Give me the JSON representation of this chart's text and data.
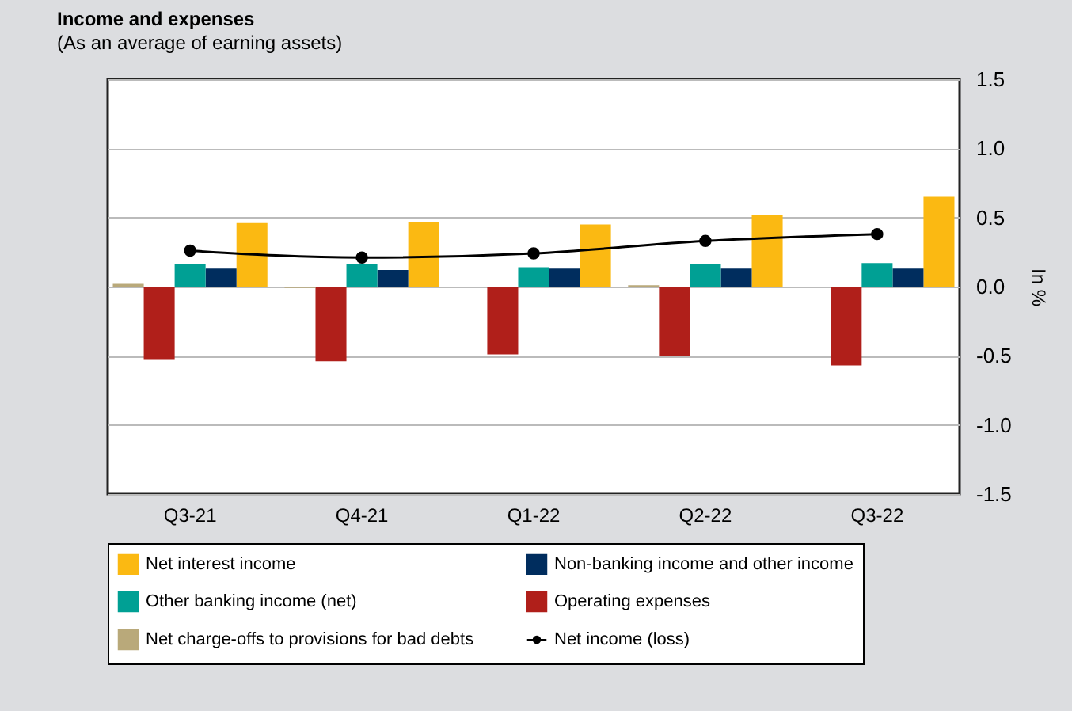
{
  "chart_data": {
    "type": "bar",
    "title": "Income and expenses",
    "subtitle": "(As an average of earning assets)",
    "ylabel": "In %",
    "categories": [
      "Q3-21",
      "Q4-21",
      "Q1-22",
      "Q2-22",
      "Q3-22"
    ],
    "series": [
      {
        "name": "Net interest income",
        "type": "bar",
        "color": "#fbb912",
        "values": [
          0.46,
          0.47,
          0.45,
          0.52,
          0.65
        ]
      },
      {
        "name": "Non-banking income and other income",
        "type": "bar",
        "color": "#002d5e",
        "values": [
          0.13,
          0.12,
          0.13,
          0.13,
          0.13
        ]
      },
      {
        "name": "Other banking income (net)",
        "type": "bar",
        "color": "#00a094",
        "values": [
          0.16,
          0.16,
          0.14,
          0.16,
          0.17
        ]
      },
      {
        "name": "Operating expenses",
        "type": "bar",
        "color": "#b01f1a",
        "values": [
          -0.53,
          -0.54,
          -0.49,
          -0.5,
          -0.57
        ]
      },
      {
        "name": "Net charge-offs to provisions for bad debts",
        "type": "bar",
        "color": "#b9a97a",
        "values": [
          0.02,
          -0.01,
          0,
          0.01,
          0
        ]
      },
      {
        "name": "Net income (loss)",
        "type": "line",
        "color": "#000000",
        "marker": "circle",
        "values": [
          0.26,
          0.21,
          0.24,
          0.33,
          0.38
        ]
      }
    ],
    "ylim": [
      -1.5,
      1.5
    ],
    "yticks": [
      -1.5,
      {
        "value": -1,
        "label": "-1.0"
      },
      -0.5,
      {
        "value": 0,
        "label": "0.0"
      },
      0.5,
      {
        "value": 1,
        "label": "1.0"
      },
      1.5
    ],
    "grid": "y",
    "legend": "bottom"
  }
}
